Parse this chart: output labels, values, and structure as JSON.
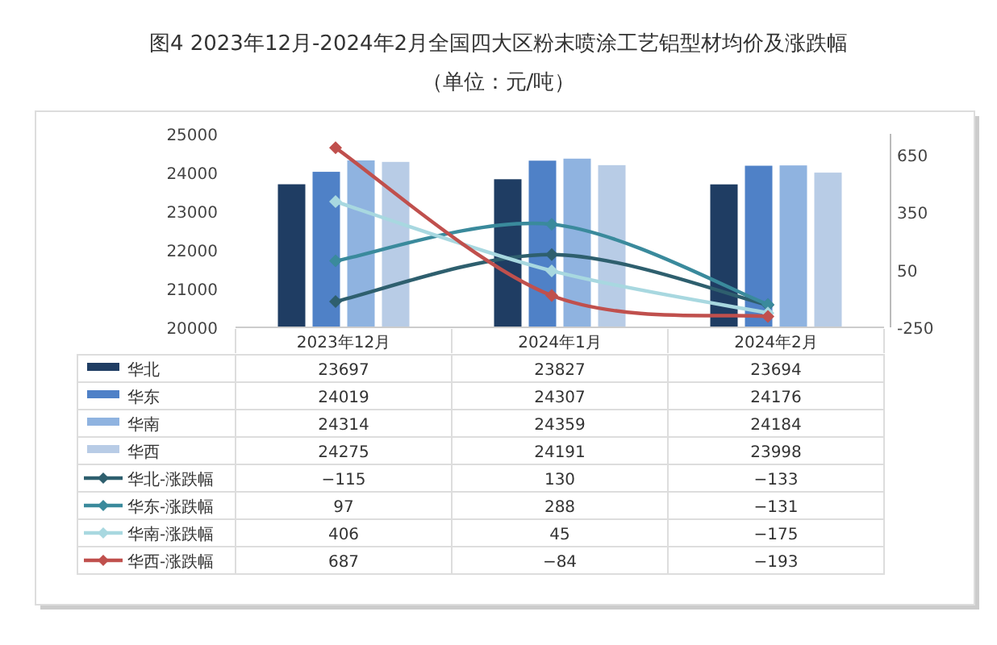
{
  "chart_data": {
    "type": "bar",
    "title": "图4 2023年12月-2024年2月全国四大区粉末喷涂工艺铝型材均价及涨跌幅",
    "subtitle": "（单位：元/吨）",
    "categories": [
      "2023年12月",
      "2024年1月",
      "2024年2月"
    ],
    "series": [
      {
        "name": "华北",
        "color": "#1f3d63",
        "values": [
          23697,
          23827,
          23694
        ]
      },
      {
        "name": "华东",
        "color": "#4f81c7",
        "values": [
          24019,
          24307,
          24176
        ]
      },
      {
        "name": "华南",
        "color": "#8fb3e0",
        "values": [
          24314,
          24359,
          24184
        ]
      },
      {
        "name": "华西",
        "color": "#b8cce6",
        "values": [
          24275,
          24191,
          23998
        ]
      },
      {
        "name": "华北-涨跌幅",
        "type": "line",
        "axis": "y2",
        "color": "#2e5f6e",
        "values": [
          -115,
          130,
          -133
        ]
      },
      {
        "name": "华东-涨跌幅",
        "type": "line",
        "axis": "y2",
        "color": "#3a8a9c",
        "values": [
          97,
          288,
          -131
        ]
      },
      {
        "name": "华南-涨跌幅",
        "type": "line",
        "axis": "y2",
        "color": "#a8d8e0",
        "values": [
          406,
          45,
          -175
        ]
      },
      {
        "name": "华西-涨跌幅",
        "type": "line",
        "axis": "y2",
        "color": "#c0504d",
        "values": [
          687,
          -84,
          -193
        ]
      }
    ],
    "ylim": [
      20000,
      25000
    ],
    "yticks": [
      20000,
      21000,
      22000,
      23000,
      24000,
      25000
    ],
    "y2lim": [
      -250,
      760
    ],
    "y2ticks": [
      -250,
      50,
      350,
      650
    ],
    "data_labels": true,
    "legend": "bottom",
    "marker": "diamond",
    "line_style": "solid",
    "grid": false
  }
}
